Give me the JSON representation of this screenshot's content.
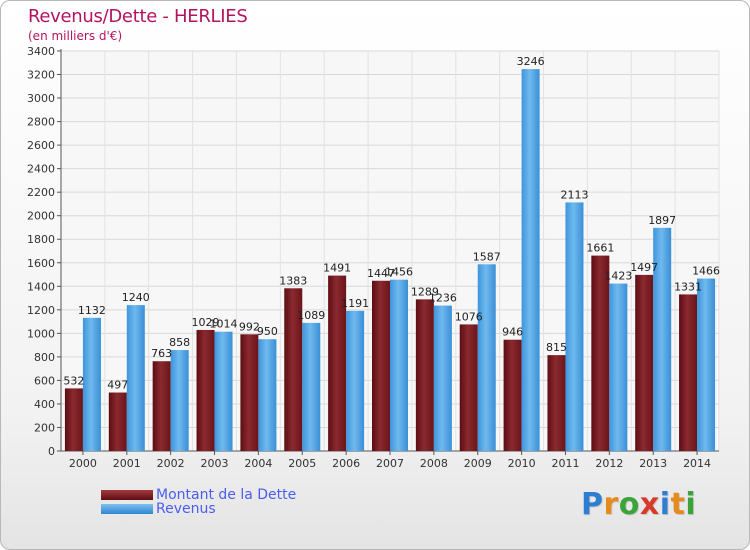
{
  "chart_data": {
    "type": "bar",
    "title": "Revenus/Dette - HERLIES",
    "subtitle": "(en milliers d'€)",
    "xlabel": "",
    "ylabel": "",
    "ylim": [
      0,
      3400
    ],
    "yticks": [
      0,
      200,
      400,
      600,
      800,
      1000,
      1200,
      1400,
      1600,
      1800,
      2000,
      2200,
      2400,
      2600,
      2800,
      3000,
      3200,
      3400
    ],
    "grid": true,
    "legend_position": "bottom-left",
    "categories": [
      "2000",
      "2001",
      "2002",
      "2003",
      "2004",
      "2005",
      "2006",
      "2007",
      "2008",
      "2009",
      "2010",
      "2011",
      "2012",
      "2013",
      "2014"
    ],
    "series": [
      {
        "name": "Montant de la Dette",
        "color": "#7a1a1f",
        "values": [
          532,
          497,
          763,
          1029,
          992,
          1383,
          1491,
          1447,
          1289,
          1076,
          946,
          815,
          1661,
          1497,
          1331
        ],
        "labels": [
          "532",
          "497",
          "763",
          "1029",
          "992",
          "1383",
          "1491",
          "1447",
          "1289",
          "1076",
          "946",
          "815",
          "1661",
          "1497",
          "1331"
        ]
      },
      {
        "name": "Revenus",
        "color": "#4ea3e6",
        "values": [
          1132,
          1240,
          858,
          1014,
          950,
          1089,
          1191,
          1456,
          1236,
          1587,
          3246,
          2113,
          1423,
          1897,
          1466
        ],
        "labels": [
          "1132",
          "1240",
          "858",
          "1014",
          "950",
          "1089",
          "1191",
          "1456",
          "1236",
          "1587",
          "3246",
          "2113",
          "1423",
          "1897",
          "1466"
        ]
      }
    ]
  },
  "logo": {
    "text": "Proxiti",
    "letters": [
      "P",
      "r",
      "o",
      "x",
      "i",
      "t",
      "i"
    ],
    "colors": [
      "#2f7dd1",
      "#e58a1c",
      "#3aa33a",
      "#d63a2a",
      "#2f7dd1",
      "#e58a1c",
      "#3aa33a"
    ]
  }
}
